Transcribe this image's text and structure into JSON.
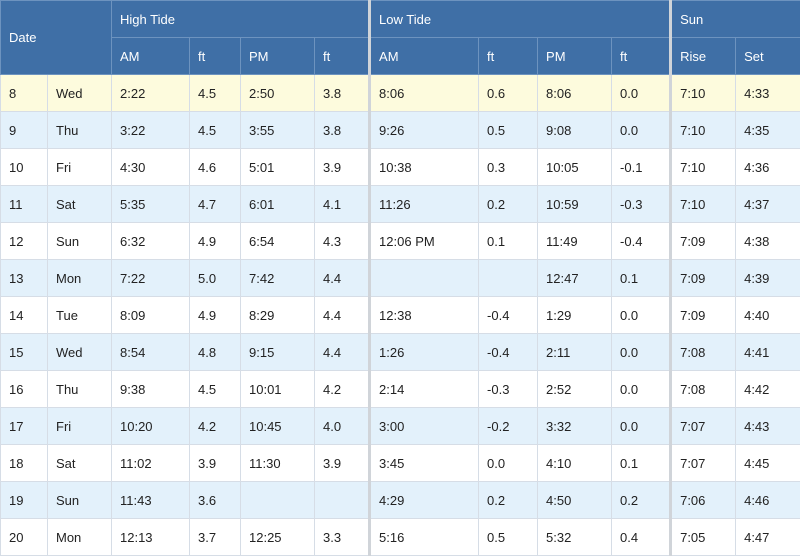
{
  "header": {
    "date": "Date",
    "high_tide": "High Tide",
    "low_tide": "Low Tide",
    "sun": "Sun",
    "am": "AM",
    "pm": "PM",
    "ft": "ft",
    "rise": "Rise",
    "set": "Set"
  },
  "highlight_color": "#fdfbdd",
  "stripe_color": "#e3f1fb",
  "header_color": "#3f6fa6",
  "rows": [
    {
      "day": "8",
      "dow": "Wed",
      "h_am": "2:22",
      "h_am_ft": "4.5",
      "h_pm": "2:50",
      "h_pm_ft": "3.8",
      "l_am": "8:06",
      "l_am_ft": "0.6",
      "l_pm": "8:06",
      "l_pm_ft": "0.0",
      "rise": "7:10",
      "set": "4:33"
    },
    {
      "day": "9",
      "dow": "Thu",
      "h_am": "3:22",
      "h_am_ft": "4.5",
      "h_pm": "3:55",
      "h_pm_ft": "3.8",
      "l_am": "9:26",
      "l_am_ft": "0.5",
      "l_pm": "9:08",
      "l_pm_ft": "0.0",
      "rise": "7:10",
      "set": "4:35"
    },
    {
      "day": "10",
      "dow": "Fri",
      "h_am": "4:30",
      "h_am_ft": "4.6",
      "h_pm": "5:01",
      "h_pm_ft": "3.9",
      "l_am": "10:38",
      "l_am_ft": "0.3",
      "l_pm": "10:05",
      "l_pm_ft": "-0.1",
      "rise": "7:10",
      "set": "4:36"
    },
    {
      "day": "11",
      "dow": "Sat",
      "h_am": "5:35",
      "h_am_ft": "4.7",
      "h_pm": "6:01",
      "h_pm_ft": "4.1",
      "l_am": "11:26",
      "l_am_ft": "0.2",
      "l_pm": "10:59",
      "l_pm_ft": "-0.3",
      "rise": "7:10",
      "set": "4:37"
    },
    {
      "day": "12",
      "dow": "Sun",
      "h_am": "6:32",
      "h_am_ft": "4.9",
      "h_pm": "6:54",
      "h_pm_ft": "4.3",
      "l_am": "12:06 PM",
      "l_am_ft": "0.1",
      "l_pm": "11:49",
      "l_pm_ft": "-0.4",
      "rise": "7:09",
      "set": "4:38"
    },
    {
      "day": "13",
      "dow": "Mon",
      "h_am": "7:22",
      "h_am_ft": "5.0",
      "h_pm": "7:42",
      "h_pm_ft": "4.4",
      "l_am": "",
      "l_am_ft": "",
      "l_pm": "12:47",
      "l_pm_ft": "0.1",
      "rise": "7:09",
      "set": "4:39"
    },
    {
      "day": "14",
      "dow": "Tue",
      "h_am": "8:09",
      "h_am_ft": "4.9",
      "h_pm": "8:29",
      "h_pm_ft": "4.4",
      "l_am": "12:38",
      "l_am_ft": "-0.4",
      "l_pm": "1:29",
      "l_pm_ft": "0.0",
      "rise": "7:09",
      "set": "4:40"
    },
    {
      "day": "15",
      "dow": "Wed",
      "h_am": "8:54",
      "h_am_ft": "4.8",
      "h_pm": "9:15",
      "h_pm_ft": "4.4",
      "l_am": "1:26",
      "l_am_ft": "-0.4",
      "l_pm": "2:11",
      "l_pm_ft": "0.0",
      "rise": "7:08",
      "set": "4:41"
    },
    {
      "day": "16",
      "dow": "Thu",
      "h_am": "9:38",
      "h_am_ft": "4.5",
      "h_pm": "10:01",
      "h_pm_ft": "4.2",
      "l_am": "2:14",
      "l_am_ft": "-0.3",
      "l_pm": "2:52",
      "l_pm_ft": "0.0",
      "rise": "7:08",
      "set": "4:42"
    },
    {
      "day": "17",
      "dow": "Fri",
      "h_am": "10:20",
      "h_am_ft": "4.2",
      "h_pm": "10:45",
      "h_pm_ft": "4.0",
      "l_am": "3:00",
      "l_am_ft": "-0.2",
      "l_pm": "3:32",
      "l_pm_ft": "0.0",
      "rise": "7:07",
      "set": "4:43"
    },
    {
      "day": "18",
      "dow": "Sat",
      "h_am": "11:02",
      "h_am_ft": "3.9",
      "h_pm": "11:30",
      "h_pm_ft": "3.9",
      "l_am": "3:45",
      "l_am_ft": "0.0",
      "l_pm": "4:10",
      "l_pm_ft": "0.1",
      "rise": "7:07",
      "set": "4:45"
    },
    {
      "day": "19",
      "dow": "Sun",
      "h_am": "11:43",
      "h_am_ft": "3.6",
      "h_pm": "",
      "h_pm_ft": "",
      "l_am": "4:29",
      "l_am_ft": "0.2",
      "l_pm": "4:50",
      "l_pm_ft": "0.2",
      "rise": "7:06",
      "set": "4:46"
    },
    {
      "day": "20",
      "dow": "Mon",
      "h_am": "12:13",
      "h_am_ft": "3.7",
      "h_pm": "12:25",
      "h_pm_ft": "3.3",
      "l_am": "5:16",
      "l_am_ft": "0.5",
      "l_pm": "5:32",
      "l_pm_ft": "0.4",
      "rise": "7:05",
      "set": "4:47"
    }
  ]
}
